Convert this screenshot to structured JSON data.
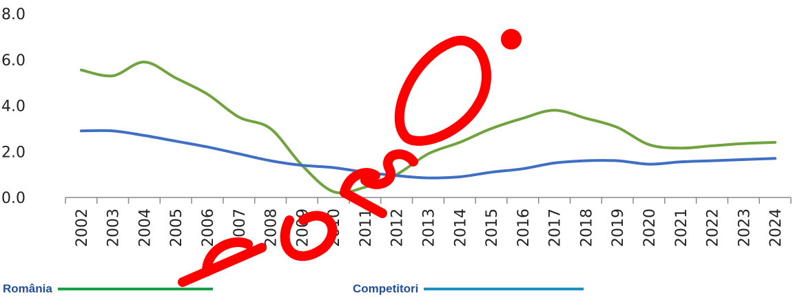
{
  "chart_data": {
    "type": "line",
    "x": [
      "2002",
      "2003",
      "2004",
      "2005",
      "2006",
      "2007",
      "2008",
      "2009",
      "2010",
      "2011",
      "2012",
      "2013",
      "2014",
      "2015",
      "2016",
      "2017",
      "2018",
      "2019",
      "2020",
      "2021",
      "2022",
      "2023",
      "2024"
    ],
    "y_ticks": [
      "0.0",
      "2.0",
      "4.0",
      "6.0",
      "8.0"
    ],
    "ylim": [
      0,
      8
    ],
    "grid": false,
    "legend_position": "bottom",
    "series": [
      {
        "name": "România",
        "color": "#70a33e",
        "values": [
          5.55,
          5.3,
          5.9,
          5.2,
          4.5,
          3.5,
          3.0,
          1.4,
          0.25,
          0.45,
          1.0,
          1.9,
          2.4,
          3.0,
          3.45,
          3.8,
          3.45,
          3.05,
          2.3,
          2.15,
          2.25,
          2.35,
          2.4
        ]
      },
      {
        "name": "Competitori",
        "color": "#3f6ec5",
        "values": [
          2.9,
          2.9,
          2.7,
          2.45,
          2.2,
          1.9,
          1.6,
          1.4,
          1.3,
          1.1,
          0.95,
          0.85,
          0.9,
          1.1,
          1.25,
          1.5,
          1.6,
          1.6,
          1.45,
          1.55,
          1.6,
          1.65,
          1.7
        ]
      }
    ]
  },
  "legend": {
    "items": [
      {
        "label": "România",
        "color": "#15a046"
      },
      {
        "label": "Competitori",
        "color": "#1f8fc4"
      }
    ]
  },
  "watermark": {
    "color": "#ff0000"
  }
}
